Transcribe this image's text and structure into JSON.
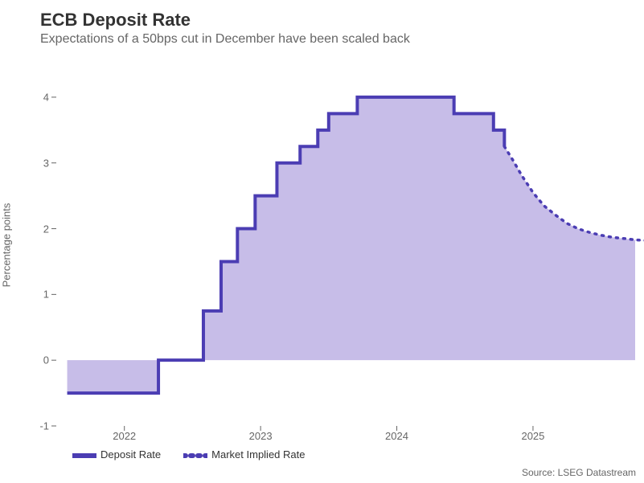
{
  "chart": {
    "type": "step-area-line",
    "title": "ECB Deposit Rate",
    "title_fontsize": 22,
    "title_color": "#333333",
    "subtitle": "Expectations of a 50bps cut in December have been scaled back",
    "subtitle_fontsize": 16,
    "subtitle_color": "#666666",
    "ylabel": "Percentage points",
    "label_fontsize": 13,
    "background_color": "#ffffff",
    "area_fill_color": "#c7bde8",
    "line_color": "#4b3db3",
    "line_width_solid": 4,
    "line_width_dashed": 3.5,
    "dash_pattern": "2 7",
    "ylim": [
      -1,
      4.5
    ],
    "yticks": [
      -1,
      0,
      1,
      2,
      3,
      4
    ],
    "x_range": [
      "2021-07",
      "2025-10"
    ],
    "xticks": [
      {
        "x": 2022.0,
        "label": "2022"
      },
      {
        "x": 2023.0,
        "label": "2023"
      },
      {
        "x": 2024.0,
        "label": "2024"
      },
      {
        "x": 2025.0,
        "label": "2025"
      }
    ],
    "series": [
      {
        "name": "Deposit Rate",
        "style": "solid",
        "step": true,
        "points": [
          {
            "x": 2021.58,
            "y": -0.5
          },
          {
            "x": 2022.25,
            "y": -0.5
          },
          {
            "x": 2022.25,
            "y": 0.0
          },
          {
            "x": 2022.58,
            "y": 0.0
          },
          {
            "x": 2022.58,
            "y": 0.75
          },
          {
            "x": 2022.71,
            "y": 0.75
          },
          {
            "x": 2022.71,
            "y": 1.5
          },
          {
            "x": 2022.83,
            "y": 1.5
          },
          {
            "x": 2022.83,
            "y": 2.0
          },
          {
            "x": 2022.96,
            "y": 2.0
          },
          {
            "x": 2022.96,
            "y": 2.5
          },
          {
            "x": 2023.12,
            "y": 2.5
          },
          {
            "x": 2023.12,
            "y": 3.0
          },
          {
            "x": 2023.29,
            "y": 3.0
          },
          {
            "x": 2023.29,
            "y": 3.25
          },
          {
            "x": 2023.42,
            "y": 3.25
          },
          {
            "x": 2023.42,
            "y": 3.5
          },
          {
            "x": 2023.5,
            "y": 3.5
          },
          {
            "x": 2023.5,
            "y": 3.75
          },
          {
            "x": 2023.71,
            "y": 3.75
          },
          {
            "x": 2023.71,
            "y": 4.0
          },
          {
            "x": 2024.42,
            "y": 4.0
          },
          {
            "x": 2024.42,
            "y": 3.75
          },
          {
            "x": 2024.71,
            "y": 3.75
          },
          {
            "x": 2024.71,
            "y": 3.5
          },
          {
            "x": 2024.79,
            "y": 3.5
          },
          {
            "x": 2024.79,
            "y": 3.25
          }
        ]
      },
      {
        "name": "Market Implied Rate",
        "style": "dashed",
        "step": false,
        "points": [
          {
            "x": 2024.79,
            "y": 3.25
          },
          {
            "x": 2024.85,
            "y": 3.05
          },
          {
            "x": 2024.92,
            "y": 2.8
          },
          {
            "x": 2025.0,
            "y": 2.55
          },
          {
            "x": 2025.08,
            "y": 2.35
          },
          {
            "x": 2025.17,
            "y": 2.2
          },
          {
            "x": 2025.25,
            "y": 2.08
          },
          {
            "x": 2025.33,
            "y": 2.0
          },
          {
            "x": 2025.42,
            "y": 1.94
          },
          {
            "x": 2025.5,
            "y": 1.9
          },
          {
            "x": 2025.58,
            "y": 1.87
          },
          {
            "x": 2025.67,
            "y": 1.85
          },
          {
            "x": 2025.75,
            "y": 1.83
          },
          {
            "x": 2025.83,
            "y": 1.82
          }
        ]
      }
    ],
    "legend": {
      "items": [
        {
          "label": "Deposit Rate",
          "style": "solid"
        },
        {
          "label": "Market Implied Rate",
          "style": "dashed"
        }
      ]
    },
    "source": "Source: LSEG Datastream",
    "source_fontsize": 12,
    "source_color": "#666666"
  }
}
